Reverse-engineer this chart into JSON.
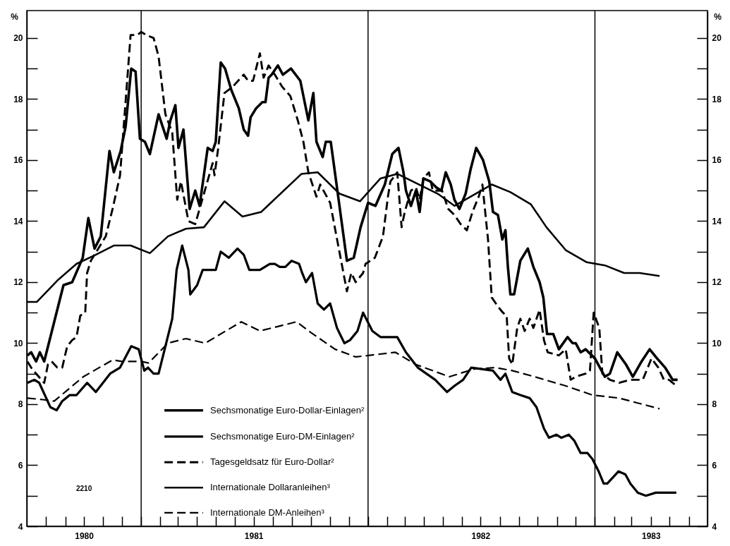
{
  "chart_data": {
    "type": "line",
    "ylabel": "%",
    "y2label": "%",
    "xlim": [
      "1980-07-01",
      "1983-07-01"
    ],
    "xticks": [
      {
        "value": "1980-08-01",
        "label": null
      },
      {
        "value": "1980-09-01",
        "label": null
      },
      {
        "value": "1980-10-01",
        "label": "1980"
      },
      {
        "value": "1980-11-01",
        "label": null
      },
      {
        "value": "1980-12-01",
        "label": null
      },
      {
        "value": "1981-01-01",
        "label": null
      },
      {
        "value": "1981-02-01",
        "label": null
      },
      {
        "value": "1981-03-01",
        "label": null
      },
      {
        "value": "1981-04-01",
        "label": null
      },
      {
        "value": "1981-05-01",
        "label": null
      },
      {
        "value": "1981-06-01",
        "label": null
      },
      {
        "value": "1981-07-01",
        "label": "1981"
      },
      {
        "value": "1981-08-01",
        "label": null
      },
      {
        "value": "1981-09-01",
        "label": null
      },
      {
        "value": "1981-10-01",
        "label": null
      },
      {
        "value": "1981-11-01",
        "label": null
      },
      {
        "value": "1981-12-01",
        "label": null
      },
      {
        "value": "1982-01-01",
        "label": null
      },
      {
        "value": "1982-02-01",
        "label": null
      },
      {
        "value": "1982-03-01",
        "label": null
      },
      {
        "value": "1982-04-01",
        "label": null
      },
      {
        "value": "1982-05-01",
        "label": null
      },
      {
        "value": "1982-06-01",
        "label": null
      },
      {
        "value": "1982-07-01",
        "label": "1982"
      },
      {
        "value": "1982-08-01",
        "label": null
      },
      {
        "value": "1982-09-01",
        "label": null
      },
      {
        "value": "1982-10-01",
        "label": null
      },
      {
        "value": "1982-11-01",
        "label": null
      },
      {
        "value": "1982-12-01",
        "label": null
      },
      {
        "value": "1983-01-01",
        "label": null
      },
      {
        "value": "1983-02-01",
        "label": null
      },
      {
        "value": "1983-03-01",
        "label": null
      },
      {
        "value": "1983-04-01",
        "label": "1983"
      },
      {
        "value": "1983-05-01",
        "label": null
      },
      {
        "value": "1983-06-01",
        "label": null
      }
    ],
    "ylim": [
      4,
      20.9
    ],
    "yticks": [
      4,
      {
        "value": 5,
        "label": null
      },
      6,
      {
        "value": 7,
        "label": null
      },
      8,
      {
        "value": 9,
        "label": null
      },
      10,
      {
        "value": 11,
        "label": null
      },
      12,
      {
        "value": 13,
        "label": null
      },
      14,
      {
        "value": 15,
        "label": null
      },
      16,
      {
        "value": 17,
        "label": null
      },
      18,
      {
        "value": 19,
        "label": null
      },
      20
    ],
    "y2lim": [
      4,
      20.9
    ],
    "y2ticks": [
      4,
      {
        "value": 5,
        "label": null
      },
      6,
      {
        "value": 7,
        "label": null
      },
      8,
      {
        "value": 9,
        "label": null
      },
      10,
      {
        "value": 11,
        "label": null
      },
      12,
      {
        "value": 13,
        "label": null
      },
      14,
      {
        "value": 15,
        "label": null
      },
      16,
      {
        "value": 17,
        "label": null
      },
      18,
      {
        "value": 19,
        "label": null
      },
      20
    ],
    "legend": "bottom",
    "ref_lines": [
      {
        "axis": "x",
        "value": "1981-01-01",
        "color": "#000000"
      },
      {
        "axis": "x",
        "value": "1982-01-01",
        "color": "#000000"
      },
      {
        "axis": "x",
        "value": "1983-01-01",
        "color": "#000000"
      }
    ],
    "annotations": [
      "2210"
    ],
    "series": [
      {
        "name": "Sechsmonatige Euro-Dollar-Einlagen²",
        "color": "#000000",
        "line_style": "solid",
        "x": [
          "1980-07-02",
          "1980-07-08",
          "1980-07-16",
          "1980-07-22",
          "1980-07-29",
          "1980-08-29",
          "1980-09-12",
          "1980-09-29",
          "1980-10-08",
          "1980-10-18",
          "1980-10-28",
          "1980-11-11",
          "1980-11-18",
          "1980-11-29",
          "1980-12-07",
          "1980-12-16",
          "1980-12-23",
          "1980-12-30",
          "1981-01-07",
          "1981-01-15",
          "1981-01-29",
          "1981-02-11",
          "1981-02-17",
          "1981-02-25",
          "1981-03-02",
          "1981-03-10",
          "1981-03-20",
          "1981-03-29",
          "1981-04-05",
          "1981-04-18",
          "1981-04-26",
          "1981-05-01",
          "1981-05-09",
          "1981-05-16",
          "1981-05-26",
          "1981-06-07",
          "1981-06-15",
          "1981-06-22",
          "1981-06-26",
          "1981-07-05",
          "1981-07-15",
          "1981-07-20",
          "1981-07-25",
          "1981-07-30",
          "1981-08-09",
          "1981-08-17",
          "1981-08-30",
          "1981-09-14",
          "1981-09-27",
          "1981-10-05",
          "1981-10-10",
          "1981-10-20",
          "1981-10-25",
          "1981-11-02",
          "1981-11-12",
          "1981-11-28",
          "1981-12-09",
          "1981-12-20",
          "1982-01-01",
          "1982-01-13",
          "1982-01-28",
          "1982-02-09",
          "1982-02-19",
          "1982-02-27",
          "1982-03-03",
          "1982-03-11",
          "1982-03-19",
          "1982-03-25",
          "1982-03-31",
          "1982-04-11",
          "1982-04-21",
          "1982-04-29",
          "1982-05-06",
          "1982-05-14",
          "1982-05-20",
          "1982-05-28",
          "1982-06-07",
          "1982-06-15",
          "1982-06-24",
          "1982-07-05",
          "1982-07-15",
          "1982-07-21",
          "1982-07-29",
          "1982-08-05",
          "1982-08-10",
          "1982-08-14",
          "1982-08-18",
          "1982-08-24",
          "1982-09-03",
          "1982-09-15",
          "1982-09-24",
          "1982-10-04",
          "1982-10-10",
          "1982-10-16",
          "1982-10-26",
          "1982-11-04",
          "1982-11-18",
          "1982-11-26",
          "1982-12-01",
          "1982-12-09",
          "1982-12-17",
          "1983-01-01",
          "1983-01-17",
          "1983-01-25",
          "1983-02-06",
          "1983-02-20",
          "1983-03-03",
          "1983-03-17",
          "1983-03-30",
          "1983-04-11",
          "1983-04-24",
          "1983-04-30",
          "1983-05-06",
          "1983-05-14"
        ],
        "values": [
          9.6,
          9.7,
          9.4,
          9.7,
          9.4,
          11.9,
          12.0,
          12.8,
          14.1,
          13.1,
          13.5,
          16.3,
          15.6,
          16.3,
          17.1,
          19.0,
          18.9,
          16.7,
          16.6,
          16.2,
          17.5,
          16.7,
          17.3,
          17.8,
          16.4,
          17.0,
          14.4,
          15.0,
          14.5,
          16.4,
          16.3,
          16.6,
          19.2,
          19.0,
          18.3,
          17.7,
          17.0,
          16.8,
          17.4,
          17.7,
          17.9,
          17.9,
          18.7,
          18.8,
          19.1,
          18.8,
          19.0,
          18.6,
          17.3,
          18.2,
          16.6,
          16.1,
          16.6,
          16.6,
          15.1,
          12.7,
          12.8,
          13.8,
          14.6,
          14.5,
          15.2,
          16.2,
          16.4,
          15.6,
          15.0,
          14.5,
          15.0,
          14.3,
          15.4,
          15.3,
          15.1,
          15.0,
          15.6,
          15.2,
          14.7,
          14.4,
          14.9,
          15.7,
          16.4,
          16.0,
          15.3,
          14.3,
          14.2,
          13.4,
          13.7,
          12.5,
          11.6,
          11.6,
          12.7,
          13.1,
          12.5,
          12.0,
          11.5,
          10.3,
          10.3,
          9.8,
          10.2,
          10.0,
          10.0,
          9.7,
          9.8,
          9.5,
          8.9,
          9.0,
          9.7,
          9.3,
          8.9,
          9.4,
          9.8,
          9.5,
          9.2,
          9.0,
          8.8,
          8.8
        ]
      },
      {
        "name": "Sechsmonatige Euro-DM-Einlagen²",
        "color": "#000000",
        "line_style": "solid",
        "x": [
          "1980-07-02",
          "1980-07-13",
          "1980-07-21",
          "1980-07-30",
          "1980-08-08",
          "1980-08-18",
          "1980-08-27",
          "1980-09-08",
          "1980-09-19",
          "1980-10-06",
          "1980-10-20",
          "1980-11-12",
          "1980-11-28",
          "1980-12-16",
          "1980-12-28",
          "1981-01-06",
          "1981-01-12",
          "1981-01-21",
          "1981-01-29",
          "1981-02-09",
          "1981-02-20",
          "1981-02-27",
          "1981-03-08",
          "1981-03-18",
          "1981-03-21",
          "1981-04-01",
          "1981-04-10",
          "1981-04-21",
          "1981-05-01",
          "1981-05-09",
          "1981-05-22",
          "1981-06-05",
          "1981-06-15",
          "1981-06-24",
          "1981-07-05",
          "1981-07-11",
          "1981-07-27",
          "1981-08-04",
          "1981-08-12",
          "1981-08-21",
          "1981-08-31",
          "1981-09-12",
          "1981-09-17",
          "1981-09-23",
          "1981-10-03",
          "1981-10-12",
          "1981-10-22",
          "1981-11-01",
          "1981-11-12",
          "1981-11-24",
          "1981-12-03",
          "1981-12-15",
          "1981-12-24",
          "1982-01-08",
          "1982-01-21",
          "1982-02-17",
          "1982-03-03",
          "1982-03-22",
          "1982-04-19",
          "1982-05-08",
          "1982-05-20",
          "1982-06-03",
          "1982-06-16",
          "1982-07-21",
          "1982-08-02",
          "1982-08-10",
          "1982-08-21",
          "1982-09-03",
          "1982-09-18",
          "1982-09-29",
          "1982-10-11",
          "1982-10-19",
          "1982-10-31",
          "1982-11-08",
          "1982-11-20",
          "1982-11-29",
          "1982-12-09",
          "1982-12-20",
          "1982-12-28",
          "1983-01-07",
          "1983-01-15",
          "1983-01-21",
          "1983-02-08",
          "1983-02-19",
          "1983-02-27",
          "1983-03-11",
          "1983-03-24",
          "1983-04-09",
          "1983-04-22",
          "1983-05-12"
        ],
        "values": [
          8.7,
          8.8,
          8.7,
          8.3,
          7.9,
          7.8,
          8.1,
          8.3,
          8.3,
          8.7,
          8.4,
          9.0,
          9.2,
          9.9,
          9.8,
          9.1,
          9.2,
          9.0,
          9.0,
          9.9,
          10.8,
          12.4,
          13.2,
          12.4,
          11.6,
          11.9,
          12.4,
          12.4,
          12.4,
          13.0,
          12.8,
          13.1,
          12.9,
          12.4,
          12.4,
          12.4,
          12.6,
          12.6,
          12.5,
          12.5,
          12.7,
          12.6,
          12.3,
          12.0,
          12.3,
          11.3,
          11.1,
          11.3,
          10.5,
          10.0,
          10.1,
          10.4,
          11.0,
          10.4,
          10.2,
          10.2,
          9.7,
          9.2,
          8.8,
          8.4,
          8.6,
          8.8,
          9.2,
          9.1,
          8.8,
          9.0,
          8.4,
          8.3,
          8.2,
          7.9,
          7.2,
          6.9,
          7.0,
          6.9,
          7.0,
          6.8,
          6.4,
          6.4,
          6.2,
          5.8,
          5.4,
          5.4,
          5.8,
          5.7,
          5.4,
          5.1,
          5.0,
          5.1,
          5.1,
          5.1
        ]
      },
      {
        "name": "Tagesgeldsatz für Euro-Dollar²",
        "color": "#000000",
        "line_style": "dashed",
        "x": [
          "1980-07-02",
          "1980-07-08",
          "1980-07-16",
          "1980-07-29",
          "1980-08-04",
          "1980-08-10",
          "1980-08-19",
          "1980-08-27",
          "1980-09-04",
          "1980-09-12",
          "1980-09-19",
          "1980-09-25",
          "1980-10-03",
          "1980-10-06",
          "1980-10-12",
          "1980-11-05",
          "1980-11-16",
          "1980-11-28",
          "1980-12-15",
          "1980-12-26",
          "1981-01-01",
          "1981-01-09",
          "1981-01-21",
          "1981-01-29",
          "1981-02-09",
          "1981-02-20",
          "1981-02-28",
          "1981-03-06",
          "1981-03-18",
          "1981-03-29",
          "1981-04-26",
          "1981-04-29",
          "1981-05-05",
          "1981-05-15",
          "1981-05-28",
          "1981-06-15",
          "1981-06-22",
          "1981-06-30",
          "1981-07-11",
          "1981-07-17",
          "1981-07-25",
          "1981-08-04",
          "1981-08-16",
          "1981-08-29",
          "1981-09-10",
          "1981-09-19",
          "1981-09-27",
          "1981-10-10",
          "1981-10-16",
          "1981-11-01",
          "1981-11-28",
          "1981-12-05",
          "1981-12-12",
          "1981-12-24",
          "1981-12-28",
          "1982-01-12",
          "1982-01-25",
          "1982-02-02",
          "1982-02-06",
          "1982-02-17",
          "1982-02-24",
          "1982-03-01",
          "1982-03-11",
          "1982-03-19",
          "1982-03-25",
          "1982-03-31",
          "1982-04-09",
          "1982-04-15",
          "1982-04-23",
          "1982-04-30",
          "1982-05-10",
          "1982-05-20",
          "1982-05-30",
          "1982-06-09",
          "1982-06-18",
          "1982-06-28",
          "1982-07-04",
          "1982-07-13",
          "1982-07-19",
          "1982-07-29",
          "1982-08-06",
          "1982-08-12",
          "1982-08-16",
          "1982-08-21",
          "1982-08-29",
          "1982-09-03",
          "1982-09-10",
          "1982-09-18",
          "1982-09-24",
          "1982-10-04",
          "1982-10-11",
          "1982-10-17",
          "1982-11-04",
          "1982-11-15",
          "1982-11-23",
          "1982-12-01",
          "1982-12-17",
          "1982-12-24",
          "1982-12-30",
          "1983-01-08",
          "1983-01-13",
          "1983-01-25",
          "1983-02-09",
          "1983-02-27",
          "1983-03-19",
          "1983-04-02",
          "1983-04-13",
          "1983-04-22",
          "1983-04-30",
          "1983-05-12"
        ],
        "values": [
          9.4,
          9.2,
          9.0,
          8.7,
          9.3,
          9.4,
          9.2,
          9.2,
          9.9,
          10.1,
          10.2,
          10.9,
          11.0,
          12.3,
          12.7,
          13.5,
          14.4,
          15.5,
          20.1,
          20.1,
          20.2,
          20.1,
          20.0,
          19.4,
          17.5,
          16.9,
          14.7,
          15.3,
          14.0,
          13.9,
          15.9,
          15.5,
          16.4,
          18.2,
          18.4,
          18.8,
          18.6,
          18.6,
          19.5,
          18.7,
          19.1,
          18.8,
          18.4,
          18.1,
          17.3,
          16.6,
          15.6,
          14.8,
          15.2,
          14.6,
          11.7,
          12.3,
          12.0,
          12.3,
          12.6,
          12.8,
          13.5,
          14.8,
          15.3,
          15.6,
          13.8,
          14.3,
          15.0,
          15.1,
          14.7,
          15.4,
          15.6,
          15.0,
          15.0,
          15.0,
          14.4,
          14.2,
          13.9,
          13.7,
          14.3,
          14.8,
          15.2,
          13.4,
          11.5,
          11.2,
          11.0,
          10.9,
          9.5,
          9.3,
          10.5,
          10.8,
          10.4,
          10.8,
          10.5,
          11.1,
          10.1,
          9.7,
          9.6,
          9.8,
          8.8,
          8.9,
          9.0,
          9.1,
          11.0,
          10.5,
          9.0,
          8.8,
          8.7,
          8.8,
          8.8,
          9.5,
          9.2,
          8.8,
          8.8,
          8.6
        ]
      },
      {
        "name": "Internationale Dollaranleihen³",
        "color": "#000000",
        "line_style": "solid",
        "x": [
          "1980-07-02",
          "1980-07-17",
          "1980-08-19",
          "1980-09-19",
          "1980-10-20",
          "1980-11-18",
          "1980-12-15",
          "1981-01-15",
          "1981-02-13",
          "1981-03-14",
          "1981-04-12",
          "1981-05-15",
          "1981-06-13",
          "1981-07-13",
          "1981-09-16",
          "1981-10-12",
          "1981-11-16",
          "1981-12-19",
          "1982-01-21",
          "1982-02-17",
          "1982-04-23",
          "1982-05-20",
          "1982-07-19",
          "1982-08-18",
          "1982-09-20",
          "1982-10-15",
          "1982-11-15",
          "1982-12-19",
          "1983-01-17",
          "1983-02-17",
          "1983-03-14",
          "1983-04-15"
        ],
        "values": [
          11.35,
          11.35,
          12.05,
          12.6,
          12.9,
          13.2,
          13.2,
          12.95,
          13.5,
          13.75,
          13.8,
          14.65,
          14.15,
          14.3,
          15.55,
          15.6,
          14.9,
          14.65,
          15.4,
          15.55,
          14.9,
          14.5,
          15.2,
          14.95,
          14.55,
          13.8,
          13.05,
          12.65,
          12.55,
          12.3,
          12.3,
          12.2
        ]
      },
      {
        "name": "Internationale DM-Anleihen³",
        "color": "#000000",
        "line_style": "dashed",
        "x": [
          "1980-07-02",
          "1980-07-27",
          "1980-08-14",
          "1980-09-30",
          "1980-11-16",
          "1980-12-01",
          "1981-01-01",
          "1981-01-13",
          "1981-02-13",
          "1981-03-14",
          "1981-04-14",
          "1981-06-11",
          "1981-07-11",
          "1981-09-08",
          "1981-10-01",
          "1981-11-09",
          "1981-12-12",
          "1982-02-14",
          "1982-03-19",
          "1982-05-12",
          "1982-06-20",
          "1982-07-25",
          "1982-08-21",
          "1982-09-26",
          "1982-11-15",
          "1982-12-28",
          "1983-02-09",
          "1983-04-15"
        ],
        "values": [
          8.2,
          8.15,
          8.1,
          8.9,
          9.45,
          9.4,
          9.4,
          9.35,
          10.0,
          10.15,
          10.0,
          10.7,
          10.4,
          10.7,
          10.35,
          9.8,
          9.55,
          9.7,
          9.3,
          8.9,
          9.15,
          9.2,
          9.1,
          8.9,
          8.6,
          8.3,
          8.2,
          7.85
        ]
      }
    ]
  }
}
